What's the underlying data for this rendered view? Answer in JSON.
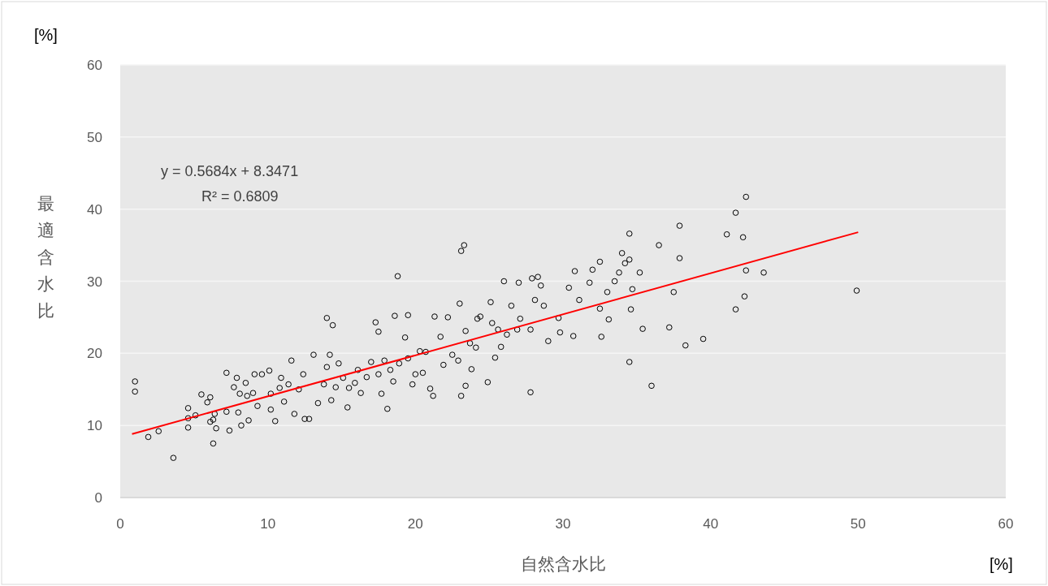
{
  "chart_data": {
    "type": "scatter",
    "xlabel": "自然含水比",
    "ylabel": "最適含水比",
    "annotations": [
      "y = 0.5684x + 8.3471",
      "R² = 0.6809",
      "[%]",
      "[%]"
    ],
    "xlim": [
      0,
      60
    ],
    "ylim": [
      0,
      60
    ],
    "xticks": [
      0,
      10,
      20,
      30,
      40,
      50,
      60
    ],
    "yticks": [
      0,
      10,
      20,
      30,
      40,
      50,
      60
    ],
    "grid": "y",
    "series": [
      {
        "marker": "circle",
        "color": "#000000",
        "x": [
          1.0,
          1.0,
          1.9,
          2.6,
          3.6,
          4.6,
          4.6,
          4.6,
          5.1,
          5.5,
          5.9,
          6.1,
          6.3,
          6.1,
          6.3,
          6.4,
          6.5,
          7.2,
          7.2,
          7.4,
          7.7,
          7.9,
          8.0,
          8.1,
          8.2,
          8.5,
          8.6,
          8.7,
          9.0,
          9.1,
          9.3,
          9.6,
          10.1,
          10.2,
          10.2,
          10.5,
          10.8,
          10.9,
          11.1,
          11.4,
          11.6,
          11.8,
          12.1,
          12.4,
          12.5,
          12.8,
          13.1,
          13.4,
          13.8,
          14.0,
          14.0,
          14.2,
          14.3,
          14.4,
          14.6,
          14.8,
          15.1,
          15.4,
          15.5,
          15.9,
          16.1,
          16.3,
          16.7,
          17.0,
          17.3,
          17.5,
          17.5,
          17.7,
          17.9,
          18.1,
          18.3,
          18.5,
          18.6,
          18.8,
          18.9,
          19.3,
          19.5,
          19.5,
          19.8,
          20.0,
          20.3,
          20.5,
          20.7,
          21.0,
          21.2,
          21.3,
          21.7,
          21.9,
          22.2,
          22.5,
          22.9,
          23.1,
          23.3,
          23.0,
          23.1,
          23.4,
          23.4,
          23.7,
          23.8,
          24.1,
          24.2,
          24.4,
          24.9,
          25.1,
          25.2,
          25.4,
          25.6,
          25.8,
          26.0,
          26.2,
          26.5,
          26.9,
          27.0,
          27.1,
          27.8,
          27.8,
          27.9,
          28.1,
          28.3,
          28.5,
          28.7,
          29.0,
          29.7,
          29.8,
          30.4,
          30.7,
          30.8,
          31.1,
          31.8,
          32.0,
          32.5,
          32.5,
          32.6,
          33.0,
          33.1,
          33.5,
          33.8,
          34.0,
          34.2,
          34.5,
          34.5,
          34.6,
          34.7,
          34.5,
          35.2,
          35.4,
          36.0,
          36.5,
          37.2,
          37.5,
          37.9,
          37.9,
          38.3,
          39.5,
          41.1,
          41.7,
          41.7,
          42.2,
          42.3,
          42.4,
          42.4,
          43.6,
          49.9
        ],
        "values": [
          16.1,
          14.7,
          8.4,
          9.2,
          5.5,
          12.4,
          11.0,
          9.7,
          11.4,
          14.3,
          13.2,
          10.5,
          10.8,
          13.9,
          7.5,
          11.6,
          9.6,
          17.3,
          11.9,
          9.3,
          15.3,
          16.6,
          11.8,
          14.4,
          10.0,
          15.9,
          14.1,
          10.7,
          14.5,
          17.1,
          12.7,
          17.1,
          17.6,
          14.4,
          12.2,
          10.6,
          15.2,
          16.6,
          13.3,
          15.7,
          19.0,
          11.6,
          15.0,
          17.1,
          10.9,
          10.9,
          19.8,
          13.1,
          15.7,
          18.1,
          24.9,
          19.8,
          13.5,
          23.9,
          15.3,
          18.6,
          16.6,
          12.5,
          15.2,
          15.9,
          17.7,
          14.5,
          16.7,
          18.8,
          24.3,
          23.0,
          17.1,
          14.4,
          19.0,
          12.3,
          17.7,
          16.1,
          25.2,
          30.7,
          18.6,
          22.2,
          19.3,
          25.3,
          15.7,
          17.1,
          20.3,
          17.3,
          20.2,
          15.1,
          14.1,
          25.1,
          22.3,
          18.4,
          25.0,
          19.8,
          19.0,
          34.2,
          35.0,
          26.9,
          14.1,
          23.1,
          15.5,
          21.4,
          17.8,
          20.8,
          24.8,
          25.1,
          16.0,
          27.1,
          24.2,
          19.4,
          23.3,
          20.9,
          30.0,
          22.6,
          26.6,
          23.3,
          29.8,
          24.8,
          23.3,
          14.6,
          30.4,
          27.4,
          30.6,
          29.4,
          26.6,
          21.7,
          24.9,
          22.9,
          29.1,
          22.4,
          31.4,
          27.4,
          29.8,
          31.6,
          32.7,
          26.2,
          22.3,
          28.5,
          24.7,
          30.0,
          31.2,
          33.9,
          32.5,
          33.0,
          36.6,
          26.1,
          28.9,
          18.8,
          31.2,
          23.4,
          15.5,
          35.0,
          23.6,
          28.5,
          37.7,
          33.2,
          21.1,
          22.0,
          36.5,
          39.5,
          26.1,
          36.1,
          27.9,
          41.7,
          31.5,
          31.2,
          28.7
        ]
      },
      {
        "type": "line",
        "color": "#ff0000",
        "x": [
          0.8,
          50
        ],
        "values": [
          8.8,
          36.8
        ]
      }
    ]
  }
}
